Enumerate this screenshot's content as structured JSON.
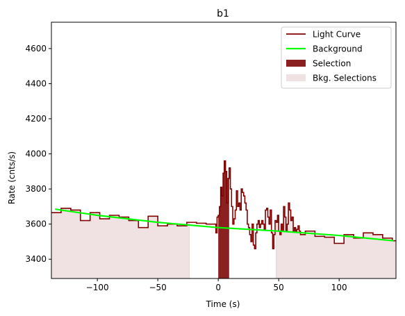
{
  "chart_data": {
    "type": "line",
    "title": "b1",
    "xlabel": "Time (s)",
    "ylabel": "Rate (cnts/s)",
    "xlim": [
      -138,
      147
    ],
    "ylim": [
      3290,
      4750
    ],
    "xticks": [
      -100,
      -50,
      0,
      50,
      100
    ],
    "yticks": [
      3400,
      3600,
      3800,
      4000,
      4200,
      4400,
      4600
    ],
    "legend_position": "top-right",
    "grid": false,
    "colors": {
      "light_curve": "#800000",
      "background": "#00ff00",
      "selection": "#8b2020",
      "bkg_selection": "#f0e2e2",
      "bkg_selection_edge": "#e8cfcf"
    },
    "legend": [
      {
        "label": "Light Curve",
        "kind": "line",
        "color": "#800000"
      },
      {
        "label": "Background",
        "kind": "line",
        "color": "#00ff00"
      },
      {
        "label": "Selection",
        "kind": "patch",
        "color": "#8b2020"
      },
      {
        "label": "Bkg. Selections",
        "kind": "patch",
        "color": "#f0e2e2"
      }
    ],
    "background_line": {
      "x": [
        -135,
        -100,
        -50,
        0,
        50,
        100,
        145
      ],
      "y": [
        3685,
        3650,
        3610,
        3580,
        3560,
        3535,
        3505
      ]
    },
    "selection_range": [
      0,
      9
    ],
    "bkg_selection_ranges": [
      [
        -138,
        -24
      ],
      [
        48,
        147
      ]
    ],
    "light_curve": {
      "x": [
        -138,
        -130,
        -122,
        -114,
        -106,
        -98,
        -90,
        -82,
        -74,
        -66,
        -58,
        -50,
        -42,
        -34,
        -26,
        -18,
        -10,
        -2,
        -1,
        0,
        1,
        2,
        3,
        4,
        5,
        6,
        7,
        8,
        9,
        10,
        11,
        12,
        13,
        14,
        15,
        16,
        17,
        18,
        19,
        20,
        21,
        22,
        23,
        24,
        25,
        26,
        27,
        28,
        29,
        30,
        31,
        32,
        33,
        34,
        35,
        36,
        37,
        38,
        39,
        40,
        41,
        42,
        43,
        44,
        45,
        46,
        47,
        48,
        49,
        50,
        51,
        52,
        53,
        54,
        55,
        56,
        57,
        58,
        59,
        60,
        61,
        62,
        63,
        64,
        65,
        66,
        67,
        68,
        72,
        80,
        88,
        96,
        104,
        112,
        120,
        128,
        136,
        144
      ],
      "y": [
        3665,
        3690,
        3680,
        3620,
        3665,
        3630,
        3650,
        3640,
        3620,
        3580,
        3645,
        3590,
        3600,
        3590,
        3610,
        3605,
        3600,
        3550,
        3640,
        3650,
        3700,
        3810,
        3760,
        3890,
        3960,
        3900,
        3720,
        3860,
        3920,
        3800,
        3700,
        3600,
        3630,
        3680,
        3790,
        3700,
        3720,
        3680,
        3800,
        3780,
        3760,
        3720,
        3680,
        3600,
        3580,
        3540,
        3500,
        3600,
        3480,
        3460,
        3550,
        3600,
        3620,
        3580,
        3600,
        3620,
        3600,
        3570,
        3680,
        3690,
        3640,
        3600,
        3680,
        3550,
        3460,
        3540,
        3620,
        3610,
        3650,
        3560,
        3540,
        3600,
        3560,
        3700,
        3640,
        3560,
        3600,
        3720,
        3680,
        3620,
        3640,
        3560,
        3580,
        3560,
        3570,
        3590,
        3560,
        3540,
        3560,
        3530,
        3525,
        3490,
        3540,
        3520,
        3550,
        3540,
        3520,
        3505
      ]
    }
  }
}
